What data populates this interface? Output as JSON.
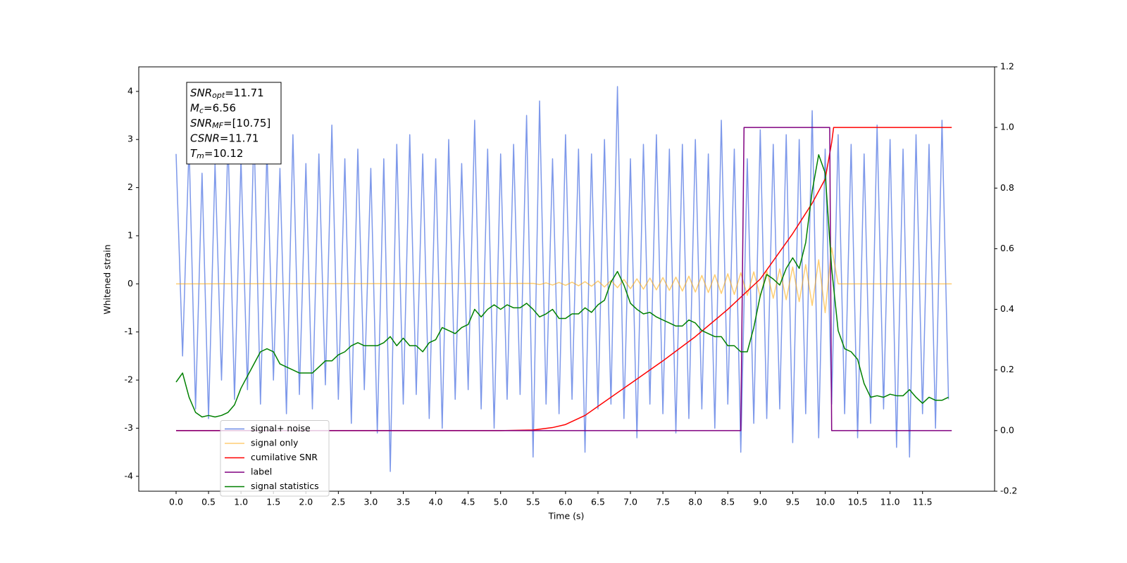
{
  "chart_data": {
    "type": "line",
    "x_label": "Time (s)",
    "y_label": "Whitened strain",
    "xlim": [
      -0.575,
      12.61
    ],
    "ylim": [
      -4.31,
      4.51
    ],
    "y2lim": [
      -0.2,
      1.2
    ],
    "xticks": [
      {
        "value": 0,
        "label": "0.0"
      },
      0.5,
      {
        "value": 1,
        "label": "1.0"
      },
      1.5,
      {
        "value": 2,
        "label": "2.0"
      },
      2.5,
      {
        "value": 3,
        "label": "3.0"
      },
      3.5,
      {
        "value": 4,
        "label": "4.0"
      },
      4.5,
      {
        "value": 5,
        "label": "5.0"
      },
      5.5,
      {
        "value": 6,
        "label": "6.0"
      },
      6.5,
      {
        "value": 7,
        "label": "7.0"
      },
      7.5,
      {
        "value": 8,
        "label": "8.0"
      },
      8.5,
      {
        "value": 9,
        "label": "9.0"
      },
      9.5,
      {
        "value": 10,
        "label": "10.0"
      },
      10.5,
      {
        "value": 11,
        "label": "11.0"
      },
      11.5
    ],
    "yticks": [
      -4,
      -3,
      -2,
      -1,
      0,
      1,
      2,
      3,
      4
    ],
    "y2ticks": [
      -0.2,
      {
        "value": 0,
        "label": "0.0"
      },
      0.2,
      0.4,
      0.6,
      0.8,
      {
        "value": 1,
        "label": "1.0"
      },
      1.2
    ],
    "legend_loc": "lower left",
    "annotation": [
      {
        "symbol": "SNR",
        "subscript": "opt",
        "text": "=11.71"
      },
      {
        "symbol": "M",
        "subscript": "c",
        "text": "=6.56"
      },
      {
        "symbol": "SNR",
        "subscript": "MF",
        "text": "=[10.75]"
      },
      {
        "symbol": "CSNR",
        "text": "=11.71"
      },
      {
        "symbol": "T",
        "subscript": "m",
        "text": "=10.12"
      }
    ],
    "x": [
      0,
      0.1,
      0.2,
      0.3,
      0.4,
      0.5,
      0.6,
      0.7,
      0.8,
      0.9,
      1,
      1.1,
      1.2,
      1.3,
      1.4,
      1.5,
      1.6,
      1.7,
      1.8,
      1.9,
      2,
      2.1,
      2.2,
      2.3,
      2.4,
      2.5,
      2.6,
      2.7,
      2.8,
      2.9,
      3,
      3.1,
      3.2,
      3.3,
      3.4,
      3.5,
      3.6,
      3.7,
      3.8,
      3.9,
      4,
      4.1,
      4.2,
      4.3,
      4.4,
      4.5,
      4.6,
      4.7,
      4.8,
      4.9,
      5,
      5.1,
      5.2,
      5.3,
      5.4,
      5.5,
      5.6,
      5.7,
      5.8,
      5.9,
      6,
      6.1,
      6.2,
      6.3,
      6.4,
      6.5,
      6.6,
      6.7,
      6.8,
      6.9,
      7,
      7.1,
      7.2,
      7.3,
      7.4,
      7.5,
      7.6,
      7.7,
      7.8,
      7.9,
      8,
      8.1,
      8.2,
      8.3,
      8.4,
      8.5,
      8.6,
      8.7,
      8.8,
      8.9,
      9,
      9.1,
      9.2,
      9.3,
      9.4,
      9.5,
      9.6,
      9.7,
      9.8,
      9.9,
      10,
      10.1,
      10.2,
      10.3,
      10.4,
      10.5,
      10.6,
      10.7,
      10.8,
      10.9,
      11,
      11.1,
      11.2,
      11.3,
      11.4,
      11.5,
      11.6,
      11.7,
      11.8,
      11.9
    ],
    "series": [
      {
        "name": "signal+ noise",
        "color": "#6f8de8",
        "values": [
          2.7,
          -1.5,
          2.9,
          -2.6,
          2.3,
          -2.8,
          2.5,
          -2.0,
          3.0,
          -2.4,
          2.6,
          -2.2,
          3.2,
          -2.5,
          2.8,
          -2.0,
          2.4,
          -2.7,
          3.1,
          -2.3,
          2.5,
          -2.6,
          2.7,
          -2.1,
          3.3,
          -2.4,
          2.6,
          -2.9,
          2.8,
          -2.2,
          2.4,
          -3.1,
          2.6,
          -3.9,
          2.9,
          -2.5,
          3.1,
          -2.3,
          2.7,
          -2.8,
          2.6,
          -3.0,
          3.0,
          -2.4,
          2.5,
          -2.2,
          3.4,
          -2.6,
          2.8,
          -3.0,
          2.7,
          -2.4,
          2.9,
          -2.3,
          3.5,
          -3.6,
          3.8,
          -2.5,
          2.6,
          -2.7,
          3.1,
          -2.4,
          2.8,
          -3.5,
          2.7,
          -2.6,
          3.0,
          -2.5,
          4.1,
          -2.8,
          2.6,
          -3.2,
          2.9,
          -2.5,
          3.1,
          -2.7,
          2.8,
          -3.1,
          2.9,
          -2.8,
          3.0,
          -2.6,
          2.7,
          -3.0,
          3.4,
          -2.5,
          2.8,
          -3.5,
          2.6,
          -2.9,
          3.2,
          -2.8,
          2.9,
          -2.6,
          3.1,
          -3.3,
          3.0,
          -2.7,
          3.6,
          -3.2,
          2.8,
          -2.5,
          3.1,
          -2.7,
          2.9,
          -3.2,
          2.7,
          -2.9,
          3.3,
          -2.6,
          3.0,
          -3.4,
          2.8,
          -3.6,
          3.1,
          -2.7,
          2.9,
          -3.0,
          3.4,
          -2.4
        ]
      },
      {
        "name": "signal only",
        "color": "#ffa500",
        "x": [
          0,
          5.5,
          5.6,
          5.7,
          5.8,
          5.9,
          6,
          6.1,
          6.2,
          6.3,
          6.4,
          6.5,
          6.6,
          6.7,
          6.8,
          6.9,
          7,
          7.1,
          7.2,
          7.3,
          7.4,
          7.5,
          7.6,
          7.7,
          7.8,
          7.9,
          8,
          8.1,
          8.2,
          8.3,
          8.4,
          8.5,
          8.6,
          8.7,
          8.8,
          8.9,
          9,
          9.1,
          9.2,
          9.3,
          9.4,
          9.5,
          9.6,
          9.7,
          9.8,
          9.9,
          10,
          10.1,
          10.2,
          11.95
        ],
        "values": [
          0,
          0.01,
          -0.015,
          0.02,
          -0.025,
          0.03,
          -0.03,
          0.035,
          -0.04,
          0.045,
          -0.05,
          0.06,
          -0.065,
          0.07,
          -0.08,
          0.09,
          -0.1,
          0.105,
          -0.11,
          0.12,
          -0.125,
          0.13,
          -0.135,
          0.14,
          -0.15,
          0.16,
          -0.17,
          0.175,
          -0.18,
          0.19,
          -0.2,
          0.21,
          -0.22,
          0.23,
          -0.24,
          0.25,
          -0.27,
          0.28,
          -0.3,
          0.31,
          -0.33,
          0.35,
          -0.37,
          0.4,
          -0.45,
          0.5,
          -0.6,
          0.75,
          0,
          0
        ]
      },
      {
        "name": "cumilative SNR",
        "color": "#ff0000",
        "axis": "y2",
        "x": [
          0,
          5,
          5.5,
          5.8,
          6,
          6.3,
          6.5,
          7,
          7.5,
          8,
          8.5,
          9,
          9.5,
          9.8,
          10,
          10.1,
          10.13,
          11.95
        ],
        "values": [
          0,
          0,
          0.002,
          0.01,
          0.02,
          0.05,
          0.08,
          0.155,
          0.23,
          0.31,
          0.4,
          0.5,
          0.65,
          0.75,
          0.83,
          0.95,
          1,
          1
        ]
      },
      {
        "name": "label",
        "color": "#800080",
        "axis": "y2",
        "x": [
          0,
          8.7,
          8.75,
          10.07,
          10.1,
          11.95
        ],
        "values": [
          0,
          0,
          1,
          1,
          0,
          0
        ]
      },
      {
        "name": "signal statistics",
        "color": "#008000",
        "axis": "y2",
        "values": [
          0.16,
          0.19,
          0.11,
          0.06,
          0.045,
          0.05,
          0.045,
          0.05,
          0.06,
          0.085,
          0.14,
          0.18,
          0.22,
          0.26,
          0.27,
          0.26,
          0.22,
          0.21,
          0.2,
          0.19,
          0.19,
          0.19,
          0.21,
          0.23,
          0.23,
          0.25,
          0.26,
          0.28,
          0.29,
          0.28,
          0.28,
          0.28,
          0.29,
          0.31,
          0.28,
          0.305,
          0.28,
          0.28,
          0.26,
          0.29,
          0.3,
          0.34,
          0.33,
          0.32,
          0.34,
          0.35,
          0.4,
          0.375,
          0.4,
          0.415,
          0.4,
          0.415,
          0.405,
          0.405,
          0.42,
          0.4,
          0.375,
          0.385,
          0.4,
          0.37,
          0.37,
          0.385,
          0.385,
          0.405,
          0.39,
          0.415,
          0.43,
          0.49,
          0.525,
          0.48,
          0.42,
          0.4,
          0.385,
          0.39,
          0.375,
          0.365,
          0.355,
          0.345,
          0.345,
          0.365,
          0.355,
          0.33,
          0.32,
          0.31,
          0.31,
          0.28,
          0.28,
          0.26,
          0.26,
          0.34,
          0.445,
          0.515,
          0.5,
          0.48,
          0.535,
          0.57,
          0.535,
          0.62,
          0.79,
          0.91,
          0.85,
          0.535,
          0.33,
          0.27,
          0.26,
          0.235,
          0.155,
          0.11,
          0.115,
          0.11,
          0.12,
          0.115,
          0.115,
          0.135,
          0.11,
          0.09,
          0.11,
          0.1,
          0.1,
          0.11
        ]
      }
    ]
  }
}
